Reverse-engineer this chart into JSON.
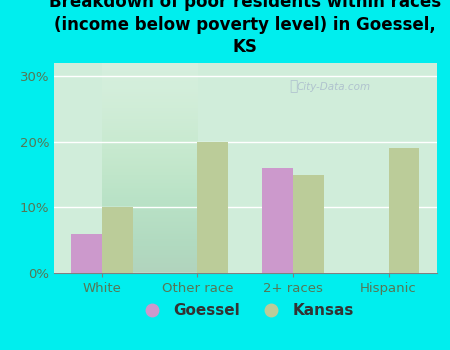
{
  "title": "Breakdown of poor residents within races\n(income below poverty level) in Goessel,\nKS",
  "categories": [
    "White",
    "Other race",
    "2+ races",
    "Hispanic"
  ],
  "goessel_values": [
    6,
    0,
    16,
    0
  ],
  "kansas_values": [
    10,
    20,
    15,
    19
  ],
  "goessel_color": "#cc99cc",
  "kansas_color": "#bbcc99",
  "background_color": "#00eeee",
  "plot_bg_top": "#f0f8f0",
  "plot_bg_bottom": "#d0edda",
  "yticks": [
    0,
    10,
    20,
    30
  ],
  "ylim": [
    0,
    32
  ],
  "bar_width": 0.32,
  "title_fontsize": 12,
  "tick_fontsize": 9.5,
  "legend_fontsize": 11,
  "axis_label_color": "#557755",
  "watermark": "City-Data.com"
}
